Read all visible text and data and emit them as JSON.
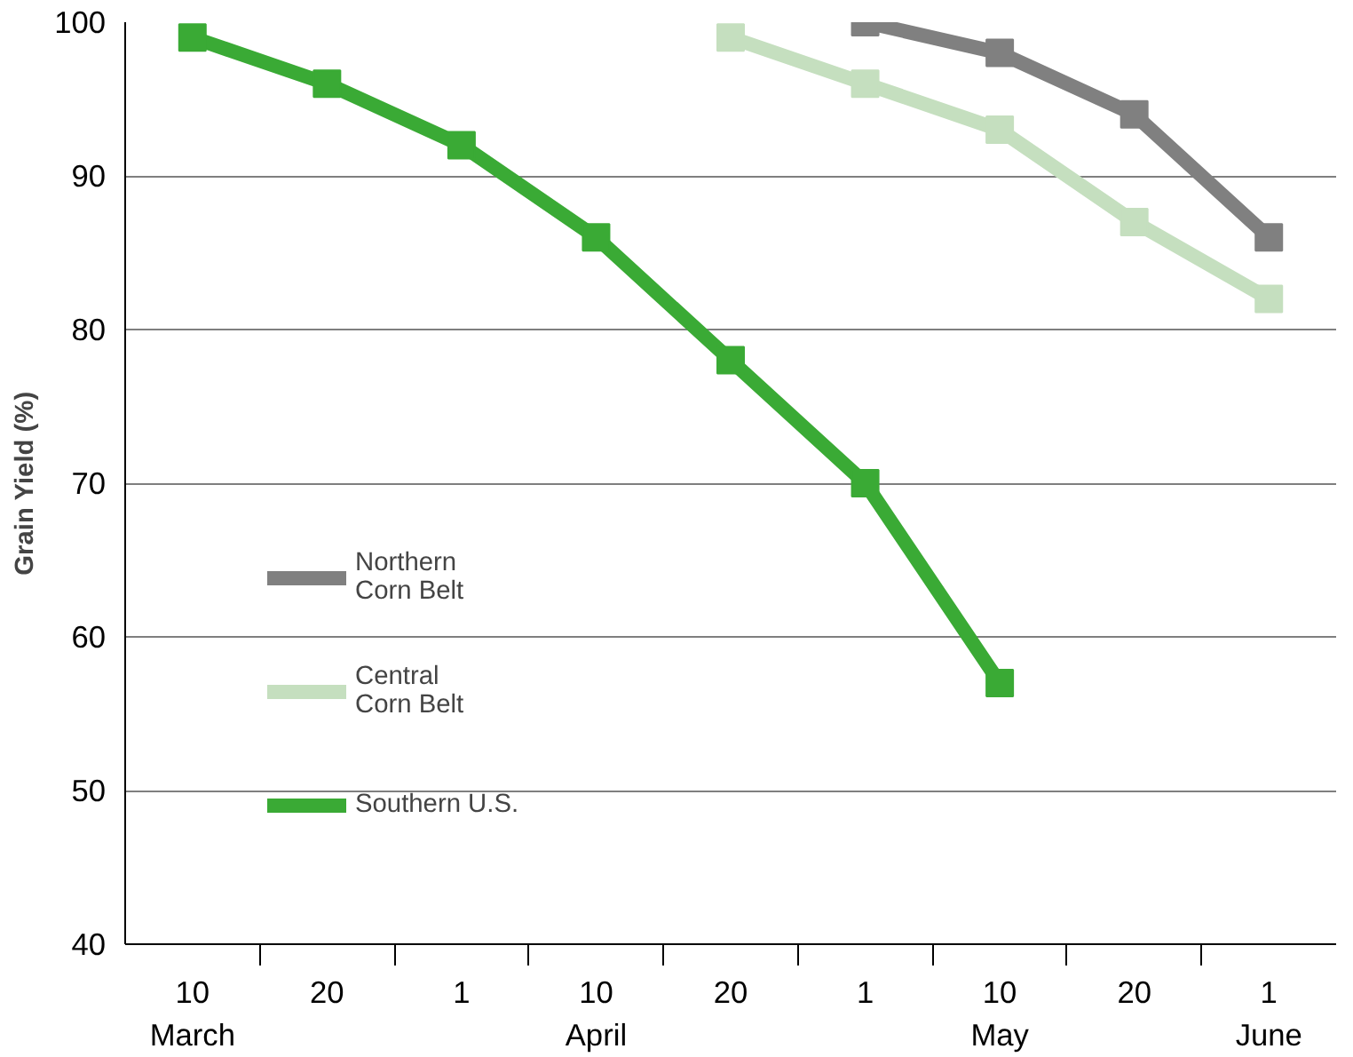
{
  "chart_data": {
    "type": "line",
    "ylabel": "Grain Yield (%)",
    "categories": [
      "10\nMarch",
      "20",
      "1",
      "10\nApril",
      "20",
      "1",
      "10\nMay",
      "20",
      "1\nJune"
    ],
    "series": [
      {
        "name": "Northern Corn Belt",
        "color": "#808080",
        "values": [
          null,
          null,
          null,
          null,
          null,
          100,
          98,
          94,
          86
        ]
      },
      {
        "name": "Central Corn Belt",
        "color": "#c5dfbf",
        "values": [
          null,
          null,
          null,
          null,
          99,
          96,
          93,
          87,
          82
        ]
      },
      {
        "name": "Southern U.S.",
        "color": "#3aaa35",
        "values": [
          99,
          96,
          92,
          86,
          78,
          70,
          57,
          null,
          null
        ]
      }
    ],
    "ylim": [
      40,
      100
    ],
    "yticks": [
      40,
      50,
      60,
      70,
      80,
      90,
      100
    ],
    "grid": "y",
    "legend": "left",
    "marker": "square",
    "line_style": "solid"
  }
}
